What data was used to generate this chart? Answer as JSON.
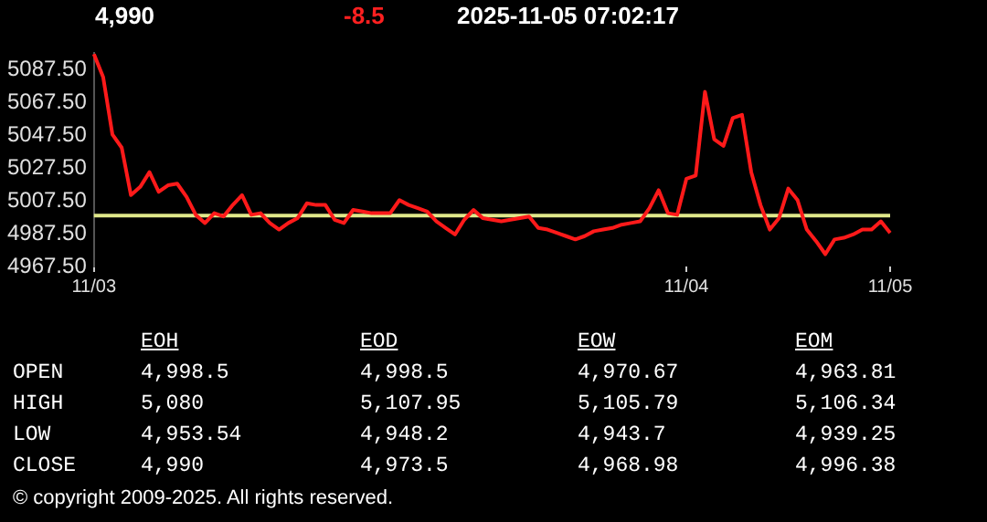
{
  "chart_data": [
    {
      "type": "line",
      "title": "4,990",
      "subtitle": "2025-11-05 07:02:17",
      "annotations": [
        "-8.5"
      ],
      "categories": [
        "11/03",
        null,
        null,
        null,
        null,
        null,
        null,
        null,
        null,
        null,
        null,
        null,
        null,
        null,
        null,
        null,
        null,
        null,
        null,
        null,
        null,
        null,
        null,
        null,
        null,
        null,
        null,
        null,
        null,
        null,
        null,
        null,
        null,
        null,
        null,
        null,
        null,
        null,
        null,
        null,
        null,
        null,
        null,
        null,
        null,
        null,
        null,
        null,
        null,
        null,
        null,
        null,
        null,
        null,
        null,
        null,
        null,
        null,
        null,
        null,
        null,
        null,
        null,
        null,
        "11/04",
        null,
        null,
        null,
        null,
        null,
        null,
        null,
        null,
        null,
        null,
        null,
        null,
        null,
        null,
        null,
        null,
        null,
        null,
        null,
        null,
        null,
        "11/05"
      ],
      "series": [
        {
          "color": "#ff1a1a",
          "values": [
            5097,
            5083,
            5048,
            5040,
            5011,
            5016,
            5025,
            5013,
            5017,
            5018,
            5010,
            4999,
            4994,
            5000,
            4998,
            5005,
            5011,
            4999,
            5000,
            4994,
            4990,
            4994,
            4997,
            5006,
            5005,
            5005,
            4996,
            4994,
            5002,
            5001,
            5000,
            5000,
            5000,
            5008,
            5005,
            5003,
            5001,
            4995,
            4991,
            4987,
            4996,
            5002,
            4997,
            4996,
            4995,
            4996,
            4997,
            4998,
            4991,
            4990,
            4988,
            4986,
            4984,
            4986,
            4989,
            4990,
            4991,
            4993,
            4994,
            4995,
            5003,
            5014,
            5000,
            4999,
            5021,
            5023,
            5074,
            5045,
            5041,
            5058,
            5060,
            5025,
            5005,
            4990,
            4997,
            5015,
            5008,
            4990,
            4983,
            4975,
            4984,
            4985,
            4987,
            4990,
            4990,
            4995,
            4988
          ]
        }
      ],
      "ylim": [
        4967.5,
        5097.5
      ],
      "yticks": [
        {
          "value": 4967.5,
          "label": "4967.50"
        },
        {
          "value": 4987.5,
          "label": "4987.50"
        },
        {
          "value": 5007.5,
          "label": "5007.50"
        },
        {
          "value": 5027.5,
          "label": "5027.50"
        },
        {
          "value": 5047.5,
          "label": "5047.50"
        },
        {
          "value": 5067.5,
          "label": "5067.50"
        },
        {
          "value": 5087.5,
          "label": "5087.50"
        }
      ],
      "ref_lines": [
        {
          "axis": "y",
          "value": 4998.5,
          "color": "#e0e88a"
        }
      ],
      "grid": false,
      "legend": false,
      "marker": "none",
      "line_style": "solid"
    },
    {
      "type": "other",
      "categories": [
        "EOH",
        "EOD",
        "EOW",
        "EOM"
      ],
      "y_categories": [
        "OPEN",
        "HIGH",
        "LOW",
        "CLOSE"
      ],
      "cell_labels": [
        [
          "4,998.5",
          "4,998.5",
          "4,970.67",
          "4,963.81"
        ],
        [
          "5,080",
          "5,107.95",
          "5,105.79",
          "5,106.34"
        ],
        [
          "4,953.54",
          "4,948.2",
          "4,943.7",
          "4,939.25"
        ],
        [
          "4,990",
          "4,973.5",
          "4,968.98",
          "4,996.38"
        ]
      ],
      "annotations": [
        "© copyright 2009-2025. All rights reserved."
      ]
    }
  ]
}
